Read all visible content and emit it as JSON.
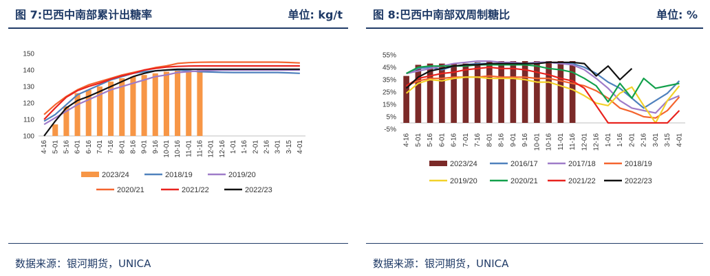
{
  "left": {
    "title": "图 7:巴西中南部累计出糖率",
    "unit": "单位: kg/t",
    "source": "数据来源：银河期货，UNICA"
  },
  "right": {
    "title": "图 8:巴西中南部双周制糖比",
    "unit": "单位: %",
    "source": "数据来源：银河期货，UNICA"
  },
  "chart_data": [
    {
      "type": "bar",
      "title": "",
      "categories": [
        "4-16",
        "5-01",
        "5-16",
        "6-01",
        "6-16",
        "7-01",
        "7-16",
        "8-01",
        "8-16",
        "9-01",
        "9-16",
        "10-01",
        "10-16",
        "11-01",
        "11-16",
        "12-01",
        "12-16",
        "1-01",
        "1-16",
        "2-01",
        "2-16",
        "3-01",
        "3-15",
        "4-01"
      ],
      "ylim": [
        100,
        150
      ],
      "yticks": [
        100,
        110,
        120,
        130,
        140,
        150
      ],
      "grid": false,
      "legend": "bottom",
      "series": [
        {
          "name": "2023/24",
          "kind": "bar",
          "color": "#f79646",
          "values": [
            96,
            107,
            118,
            126,
            128,
            130,
            133,
            135,
            136,
            137,
            138,
            139,
            140,
            140,
            140,
            null,
            null,
            null,
            null,
            null,
            null,
            null,
            null,
            null
          ]
        },
        {
          "name": "2018/19",
          "kind": "line",
          "color": "#4f81bd",
          "values": [
            109,
            113,
            119,
            125,
            128,
            131,
            134,
            136,
            138,
            139,
            139.5,
            140,
            140,
            139.5,
            139,
            138.8,
            138.6,
            138.5,
            138.5,
            138.5,
            138.5,
            138.5,
            138.3,
            138
          ]
        },
        {
          "name": "2019/20",
          "kind": "line",
          "color": "#9e7bc8",
          "values": [
            107,
            111,
            115,
            119,
            122,
            125,
            128,
            130,
            132,
            134,
            136,
            137,
            138.5,
            139,
            139.5,
            139.8,
            140,
            140,
            140,
            140,
            140,
            140,
            140,
            140
          ]
        },
        {
          "name": "2020/21",
          "kind": "line",
          "color": "#f4642e",
          "values": [
            113,
            119,
            124,
            128,
            131,
            133,
            135,
            137,
            138.5,
            140,
            141.5,
            142.5,
            144,
            144.5,
            144.7,
            144.8,
            144.8,
            144.8,
            144.8,
            144.8,
            144.8,
            144.8,
            144.6,
            144.3
          ]
        },
        {
          "name": "2021/22",
          "kind": "line",
          "color": "#e8231e",
          "values": [
            110,
            117,
            123.5,
            127.5,
            130,
            132,
            134.5,
            136.5,
            138,
            140,
            141,
            141.8,
            142.2,
            142.4,
            142.5,
            142.5,
            142.5,
            142.5,
            142.5,
            142.5,
            142.5,
            142.5,
            142.5,
            142.5
          ]
        },
        {
          "name": "2022/23",
          "kind": "line",
          "color": "#111111",
          "values": [
            100,
            109,
            117,
            121.5,
            124,
            127,
            130,
            133,
            136,
            138,
            139.5,
            140,
            140.5,
            140.5,
            140.5,
            140.5,
            140.5,
            140.5,
            140.5,
            140.5,
            140.5,
            140.5,
            140.5,
            140.5
          ]
        }
      ]
    },
    {
      "type": "bar",
      "title": "",
      "categories": [
        "4-16",
        "5-01",
        "5-16",
        "6-01",
        "6-16",
        "7-01",
        "7-16",
        "8-01",
        "8-16",
        "9-01",
        "9-16",
        "10-01",
        "10-16",
        "11-01",
        "11-16",
        "12-01",
        "12-16",
        "1-01",
        "1-16",
        "2-01",
        "2-16",
        "3-01",
        "3-15",
        "4-01"
      ],
      "ylim": [
        -5,
        55
      ],
      "yticks": [
        -5,
        5,
        15,
        25,
        35,
        45,
        55
      ],
      "ytick_suffix": "%",
      "grid": false,
      "legend": "bottom",
      "series": [
        {
          "name": "2023/24",
          "kind": "bar",
          "color": "#7b2a28",
          "values": [
            38,
            47,
            48,
            48,
            48,
            48,
            49,
            50,
            50,
            50,
            50,
            50,
            50,
            50,
            50,
            null,
            null,
            null,
            null,
            null,
            null,
            null,
            null,
            null
          ]
        },
        {
          "name": "2016/17",
          "kind": "line",
          "color": "#4f81bd",
          "values": [
            40,
            44,
            45,
            43,
            46,
            47,
            48,
            48,
            48,
            48,
            48,
            49,
            49,
            48,
            48,
            45,
            40,
            33,
            28,
            20,
            12,
            18,
            24,
            34
          ]
        },
        {
          "name": "2017/18",
          "kind": "line",
          "color": "#9e7bc8",
          "values": [
            40,
            42,
            44,
            46,
            48,
            49,
            50,
            50,
            49,
            49,
            48,
            49,
            49,
            48,
            47,
            43,
            36,
            28,
            18,
            12,
            10,
            8,
            18,
            22
          ]
        },
        {
          "name": "2018/19",
          "kind": "line",
          "color": "#f4642e",
          "values": [
            30,
            34,
            36,
            36,
            37,
            37,
            37,
            38,
            37,
            37,
            37,
            36,
            36,
            34,
            32,
            30,
            26,
            20,
            12,
            9,
            5,
            4,
            10,
            21
          ]
        },
        {
          "name": "2019/20",
          "kind": "line",
          "color": "#f2d12a",
          "values": [
            24,
            32,
            35,
            34,
            36,
            37,
            37,
            36,
            36,
            36,
            35,
            33,
            33,
            30,
            27,
            22,
            16,
            14,
            24,
            29,
            14,
            0,
            18,
            30
          ]
        },
        {
          "name": "2020/21",
          "kind": "line",
          "color": "#12a04b",
          "values": [
            40,
            45,
            46,
            46,
            46,
            46,
            47,
            47,
            47,
            47,
            47,
            46,
            44,
            43,
            41,
            36,
            30,
            17,
            32,
            20,
            36,
            28,
            30,
            32
          ]
        },
        {
          "name": "2021/22",
          "kind": "line",
          "color": "#e8231e",
          "values": [
            30,
            36,
            38,
            40,
            41,
            43,
            44,
            45,
            44,
            44,
            43,
            41,
            39,
            36,
            34,
            28,
            14,
            0,
            0,
            0,
            0,
            0,
            0,
            10
          ]
        },
        {
          "name": "2022/23",
          "kind": "line",
          "color": "#111111",
          "values": [
            28,
            37,
            42,
            44,
            46,
            47,
            47,
            48,
            48,
            48,
            48,
            48,
            49,
            49,
            49,
            48,
            38,
            46,
            35,
            44,
            null,
            null,
            null,
            null
          ]
        }
      ]
    }
  ]
}
